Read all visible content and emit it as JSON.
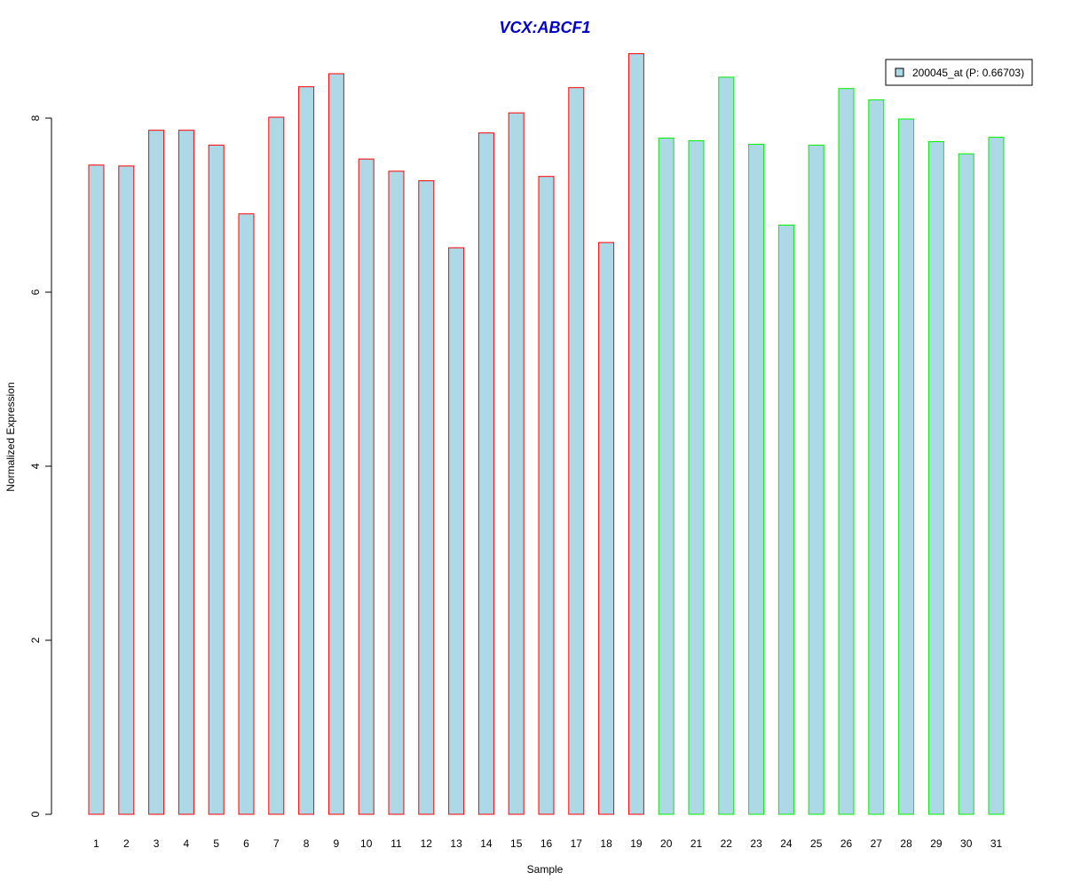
{
  "chart_data": {
    "type": "bar",
    "title": "VCX:ABCF1",
    "xlabel": "Sample",
    "ylabel": "Normalized Expression",
    "categories": [
      "1",
      "2",
      "3",
      "4",
      "5",
      "6",
      "7",
      "8",
      "9",
      "10",
      "11",
      "12",
      "13",
      "14",
      "15",
      "16",
      "17",
      "18",
      "19",
      "20",
      "21",
      "22",
      "23",
      "24",
      "25",
      "26",
      "27",
      "28",
      "29",
      "30",
      "31"
    ],
    "values": [
      7.46,
      7.45,
      7.86,
      7.86,
      7.69,
      6.9,
      8.01,
      8.36,
      8.51,
      7.53,
      7.39,
      7.28,
      6.51,
      7.83,
      8.06,
      7.33,
      8.35,
      6.57,
      8.74,
      7.77,
      7.74,
      8.47,
      7.7,
      6.77,
      7.69,
      8.34,
      8.21,
      7.99,
      7.73,
      7.59,
      7.78
    ],
    "groups": [
      1,
      1,
      1,
      1,
      1,
      1,
      1,
      1,
      1,
      1,
      1,
      1,
      1,
      1,
      1,
      1,
      1,
      1,
      1,
      2,
      2,
      2,
      2,
      2,
      2,
      2,
      2,
      2,
      2,
      2,
      2
    ],
    "group_colors": {
      "1": "#ff0000",
      "2": "#00ee00"
    },
    "bar_fill": "#add8e6",
    "title_color": "#0000cc",
    "ylim": [
      0,
      8.8
    ],
    "yticks": [
      0,
      2,
      4,
      6,
      8
    ],
    "grid": false,
    "legend": {
      "position": "top-right",
      "entries": [
        {
          "label": "200045_at (P: 0.66703)",
          "color": "#add8e6"
        }
      ]
    }
  }
}
